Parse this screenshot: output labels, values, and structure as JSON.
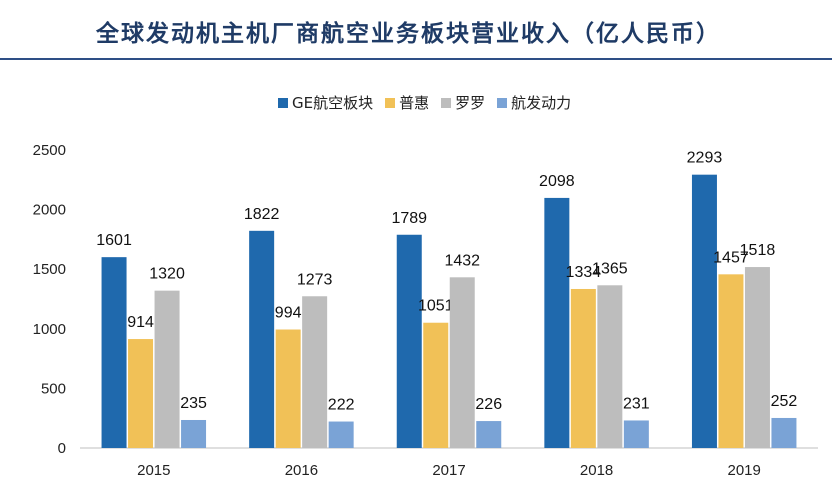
{
  "title": "全球发动机主机厂商航空业务板块营业收入（亿人民币）",
  "chart_data": {
    "type": "bar",
    "title": "全球发动机主机厂商航空业务板块营业收入（亿人民币）",
    "categories": [
      "2015",
      "2016",
      "2017",
      "2018",
      "2019"
    ],
    "series": [
      {
        "name": "GE航空板块",
        "color": "#1f69ad",
        "values": [
          1601,
          1822,
          1789,
          2098,
          2293
        ]
      },
      {
        "name": "普惠",
        "color": "#f1c157",
        "values": [
          914,
          994,
          1051,
          1334,
          1457
        ]
      },
      {
        "name": "罗罗",
        "color": "#bdbdbd",
        "values": [
          1320,
          1273,
          1432,
          1365,
          1518
        ]
      },
      {
        "name": "航发动力",
        "color": "#7aa3d6",
        "values": [
          235,
          222,
          226,
          231,
          252
        ]
      }
    ],
    "ylim": [
      0,
      2500
    ],
    "yticks": [
      "0",
      "500",
      "1000",
      "1500",
      "2000",
      "2500"
    ],
    "xlabel": "",
    "ylabel": "",
    "grid": false,
    "legend_position": "top-center"
  }
}
